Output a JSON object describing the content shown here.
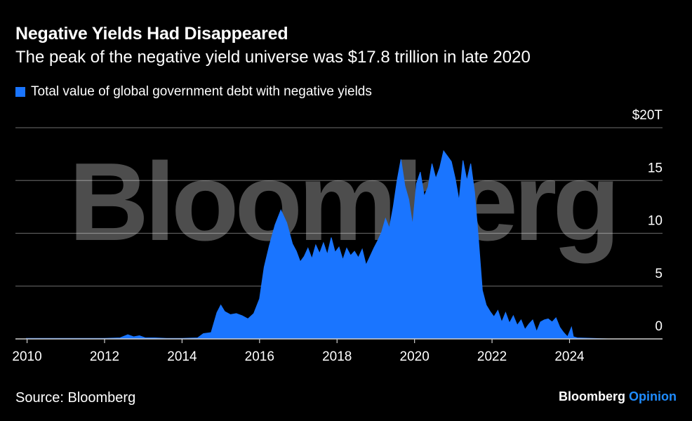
{
  "header": {
    "title": "Negative Yields Had Disappeared",
    "subtitle": "The peak of the negative yield universe was $17.8 trillion in late 2020"
  },
  "footer": {
    "source": "Source: Bloomberg",
    "brand": "Bloomberg",
    "brand_suffix": "Opinion"
  },
  "watermark": "Bloomberg",
  "colors": {
    "background": "#000000",
    "series": "#1a75ff",
    "gridline": "#5a5a5a",
    "text": "#ffffff",
    "accent": "#1f8cff"
  },
  "chart_data": {
    "type": "area",
    "title": "Negative Yields Had Disappeared",
    "subtitle": "The peak of the negative yield universe was $17.8 trillion in late 2020",
    "ylabel": "",
    "xlabel": "",
    "xlim": [
      2009.7,
      2026.4
    ],
    "ylim": [
      0,
      20
    ],
    "y_unit_prefix": "$",
    "y_unit_suffix": "T",
    "yticks": [
      0,
      5,
      10,
      15,
      20
    ],
    "ytick_labels": [
      "0",
      "5",
      "10",
      "15",
      "$20T"
    ],
    "xticks": [
      2010,
      2012,
      2014,
      2016,
      2018,
      2020,
      2022,
      2024
    ],
    "xtick_labels": [
      "2010",
      "2012",
      "2014",
      "2016",
      "2018",
      "2020",
      "2022",
      "2024"
    ],
    "grid": true,
    "legend": "top-left",
    "series": [
      {
        "name": "Total value of global government debt with negative yields",
        "x": [
          2009.98,
          2011.0,
          2012.0,
          2012.4,
          2012.6,
          2012.75,
          2012.9,
          2013.05,
          2013.3,
          2013.6,
          2014.0,
          2014.4,
          2014.55,
          2014.75,
          2014.9,
          2015.0,
          2015.1,
          2015.25,
          2015.4,
          2015.55,
          2015.7,
          2015.85,
          2016.0,
          2016.12,
          2016.25,
          2016.4,
          2016.55,
          2016.7,
          2016.85,
          2016.95,
          2017.05,
          2017.15,
          2017.25,
          2017.35,
          2017.45,
          2017.55,
          2017.65,
          2017.75,
          2017.85,
          2017.95,
          2018.05,
          2018.15,
          2018.25,
          2018.35,
          2018.45,
          2018.55,
          2018.65,
          2018.75,
          2018.85,
          2018.95,
          2019.05,
          2019.15,
          2019.25,
          2019.35,
          2019.45,
          2019.55,
          2019.65,
          2019.75,
          2019.85,
          2019.95,
          2020.05,
          2020.15,
          2020.25,
          2020.35,
          2020.45,
          2020.55,
          2020.65,
          2020.75,
          2020.85,
          2020.95,
          2021.05,
          2021.15,
          2021.25,
          2021.35,
          2021.45,
          2021.55,
          2021.65,
          2021.75,
          2021.85,
          2021.95,
          2022.05,
          2022.15,
          2022.25,
          2022.35,
          2022.45,
          2022.55,
          2022.65,
          2022.75,
          2022.85,
          2022.95,
          2023.05,
          2023.15,
          2023.25,
          2023.35,
          2023.45,
          2023.55,
          2023.65,
          2023.75,
          2023.85,
          2023.95,
          2024.05,
          2024.1,
          2024.2,
          2025.0,
          2025.5
        ],
        "values": [
          0.05,
          0.05,
          0.05,
          0.1,
          0.4,
          0.2,
          0.3,
          0.1,
          0.1,
          0.05,
          0.05,
          0.1,
          0.5,
          0.6,
          2.5,
          3.2,
          2.6,
          2.3,
          2.4,
          2.2,
          1.9,
          2.4,
          3.8,
          6.8,
          8.8,
          10.8,
          12.2,
          11.0,
          9.0,
          8.3,
          7.3,
          7.8,
          8.6,
          7.6,
          8.9,
          8.1,
          9.1,
          8.0,
          9.6,
          8.2,
          8.7,
          7.5,
          8.6,
          7.9,
          8.3,
          7.7,
          8.5,
          7.0,
          7.8,
          8.6,
          9.3,
          10.1,
          11.4,
          10.5,
          12.5,
          15.0,
          17.0,
          14.5,
          13.2,
          10.8,
          14.7,
          15.8,
          13.5,
          14.4,
          16.6,
          15.2,
          16.2,
          17.8,
          17.3,
          16.8,
          15.2,
          13.1,
          16.9,
          15.0,
          16.6,
          13.9,
          9.4,
          4.6,
          3.2,
          2.6,
          2.1,
          2.7,
          1.6,
          2.5,
          1.5,
          2.2,
          1.3,
          1.8,
          0.9,
          1.4,
          1.8,
          0.7,
          1.6,
          1.8,
          1.9,
          1.6,
          2.0,
          1.1,
          0.6,
          0.2,
          1.1,
          0.2,
          0.1,
          0.0,
          0.0
        ]
      }
    ]
  }
}
